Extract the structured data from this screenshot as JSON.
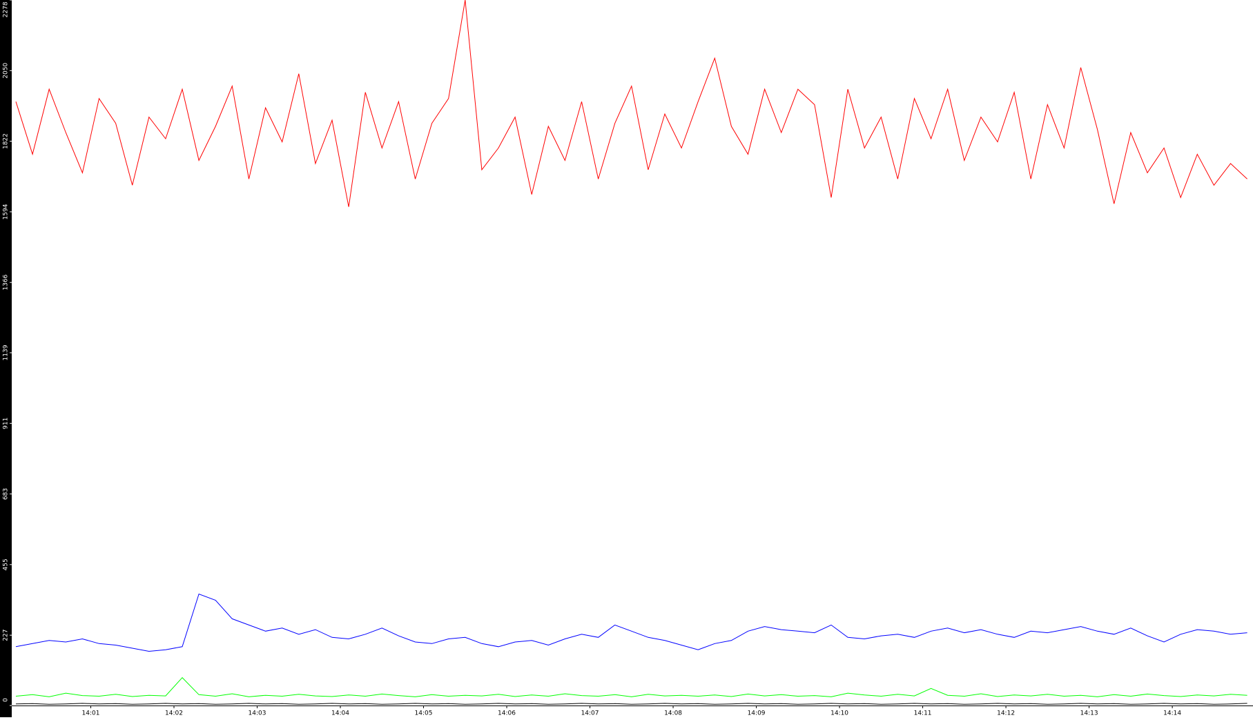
{
  "chart_data": {
    "type": "line",
    "x": [
      0.1,
      0.3,
      0.5,
      0.7,
      0.9,
      1.1,
      1.3,
      1.5,
      1.7,
      1.9,
      2.1,
      2.3,
      2.5,
      2.7,
      2.9,
      3.1,
      3.3,
      3.5,
      3.7,
      3.9,
      4.1,
      4.3,
      4.5,
      4.7,
      4.9,
      5.1,
      5.3,
      5.5,
      5.7,
      5.9,
      6.1,
      6.3,
      6.5,
      6.7,
      6.9,
      7.1,
      7.3,
      7.5,
      7.7,
      7.9,
      8.1,
      8.3,
      8.5,
      8.7,
      8.9,
      9.1,
      9.3,
      9.5,
      9.7,
      9.9,
      10.1,
      10.3,
      10.5,
      10.7,
      10.9,
      11.1,
      11.3,
      11.5,
      11.7,
      11.9,
      12.1,
      12.3,
      12.5,
      12.7,
      12.9,
      13.1,
      13.3,
      13.5,
      13.7,
      13.9,
      14.1,
      14.3,
      14.5,
      14.7,
      14.9
    ],
    "series": [
      {
        "color": "#ff0000",
        "values": [
          1950,
          1780,
          1990,
          1850,
          1720,
          1960,
          1880,
          1680,
          1900,
          1830,
          1990,
          1760,
          1870,
          2000,
          1700,
          1930,
          1820,
          2040,
          1750,
          1890,
          1610,
          1980,
          1800,
          1950,
          1700,
          1880,
          1960,
          2278,
          1730,
          1800,
          1900,
          1650,
          1870,
          1760,
          1950,
          1700,
          1880,
          2000,
          1730,
          1910,
          1800,
          1950,
          2090,
          1870,
          1780,
          1990,
          1850,
          1990,
          1940,
          1640,
          1990,
          1800,
          1900,
          1700,
          1960,
          1830,
          1990,
          1760,
          1900,
          1820,
          1980,
          1700,
          1940,
          1800,
          2060,
          1860,
          1620,
          1850,
          1720,
          1800,
          1640,
          1780,
          1680,
          1750,
          1700
        ]
      },
      {
        "color": "#0000ff",
        "values": [
          190,
          200,
          210,
          205,
          215,
          200,
          195,
          185,
          175,
          180,
          190,
          360,
          340,
          280,
          260,
          240,
          250,
          230,
          245,
          220,
          215,
          230,
          250,
          225,
          205,
          200,
          215,
          220,
          200,
          190,
          205,
          210,
          195,
          215,
          230,
          220,
          260,
          240,
          220,
          210,
          195,
          180,
          200,
          210,
          240,
          255,
          245,
          240,
          235,
          260,
          220,
          215,
          225,
          230,
          220,
          240,
          250,
          235,
          245,
          230,
          220,
          240,
          235,
          245,
          255,
          240,
          230,
          250,
          225,
          205,
          230,
          245,
          240,
          230,
          235
        ]
      },
      {
        "color": "#00ff00",
        "values": [
          30,
          35,
          28,
          40,
          32,
          30,
          36,
          29,
          33,
          31,
          90,
          35,
          30,
          38,
          28,
          33,
          30,
          36,
          31,
          29,
          34,
          30,
          37,
          32,
          28,
          35,
          30,
          33,
          31,
          36,
          29,
          34,
          30,
          38,
          32,
          30,
          35,
          28,
          36,
          31,
          33,
          30,
          34,
          29,
          37,
          31,
          35,
          30,
          32,
          28,
          40,
          34,
          30,
          36,
          31,
          55,
          33,
          30,
          38,
          29,
          34,
          31,
          36,
          30,
          33,
          28,
          35,
          30,
          37,
          32,
          29,
          34,
          31,
          36,
          33
        ]
      },
      {
        "color": "#000000",
        "values": [
          5,
          6,
          4,
          5,
          7,
          5,
          6,
          4,
          5,
          7,
          5,
          6,
          4,
          5,
          7,
          5,
          6,
          4,
          5,
          7,
          5,
          6,
          4,
          5,
          7,
          5,
          6,
          4,
          5,
          7,
          5,
          6,
          4,
          5,
          7,
          5,
          6,
          4,
          5,
          7,
          5,
          6,
          4,
          5,
          7,
          5,
          6,
          4,
          5,
          7,
          5,
          6,
          4,
          5,
          7,
          5,
          6,
          4,
          5,
          7,
          5,
          6,
          4,
          5,
          7,
          5,
          6,
          4,
          5,
          7,
          5,
          6,
          4,
          5,
          7
        ]
      }
    ],
    "xlim": [
      0.05,
      14.97
    ],
    "xticks": [
      {
        "value": 1,
        "label": "14:01"
      },
      {
        "value": 2,
        "label": "14:02"
      },
      {
        "value": 3,
        "label": "14:03"
      },
      {
        "value": 4,
        "label": "14:04"
      },
      {
        "value": 5,
        "label": "14:05"
      },
      {
        "value": 6,
        "label": "14:06"
      },
      {
        "value": 7,
        "label": "14:07"
      },
      {
        "value": 8,
        "label": "14:08"
      },
      {
        "value": 9,
        "label": "14:09"
      },
      {
        "value": 10,
        "label": "14:10"
      },
      {
        "value": 11,
        "label": "14:11"
      },
      {
        "value": 12,
        "label": "14:12"
      },
      {
        "value": 13,
        "label": "14:13"
      },
      {
        "value": 14,
        "label": "14:14"
      }
    ],
    "ylim": [
      0,
      2278
    ],
    "yticks": [
      0,
      227,
      455,
      683,
      911,
      1139,
      1366,
      1594,
      1822,
      2050,
      2278
    ]
  }
}
